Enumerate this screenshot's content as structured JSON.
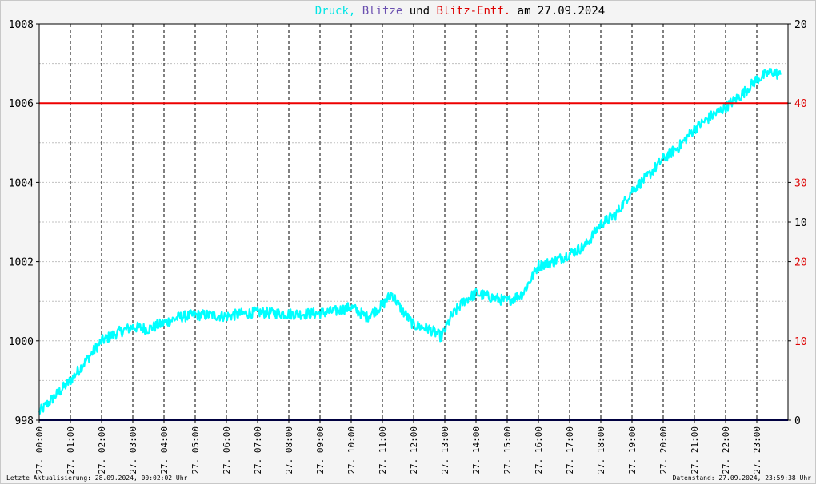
{
  "chart_data": {
    "type": "line",
    "title_parts": [
      {
        "text": "Druck,",
        "color": "#00e5e5"
      },
      {
        "text": "Blitze",
        "color": "#6a4fb0"
      },
      {
        "text": "und",
        "color": "#000000"
      },
      {
        "text": "Blitz-Entf.",
        "color": "#dd0000"
      },
      {
        "text": "am 27.09.2024",
        "color": "#000000"
      }
    ],
    "y_left": {
      "min": 998,
      "max": 1008,
      "ticks": [
        998,
        1000,
        1002,
        1004,
        1006,
        1008
      ]
    },
    "y_right_ticks": [
      {
        "label": "0",
        "color": "#000000",
        "pressure": 998
      },
      {
        "label": "10",
        "color": "#dd0000",
        "pressure": 1000
      },
      {
        "label": "20",
        "color": "#dd0000",
        "pressure": 1002
      },
      {
        "label": "10",
        "color": "#000000",
        "pressure": 1003
      },
      {
        "label": "30",
        "color": "#dd0000",
        "pressure": 1004
      },
      {
        "label": "40",
        "color": "#dd0000",
        "pressure": 1006
      },
      {
        "label": "20",
        "color": "#000000",
        "pressure": 1008
      }
    ],
    "x_labels": [
      "27. 00:00",
      "27. 01:00",
      "27. 02:00",
      "27. 03:00",
      "27. 04:00",
      "27. 05:00",
      "27. 06:00",
      "27. 07:00",
      "27. 08:00",
      "27. 09:00",
      "27. 10:00",
      "27. 11:00",
      "27. 12:00",
      "27. 13:00",
      "27. 14:00",
      "27. 15:00",
      "27. 16:00",
      "27. 17:00",
      "27. 18:00",
      "27. 19:00",
      "27. 20:00",
      "27. 21:00",
      "27. 22:00",
      "27. 23:00"
    ],
    "x_hours_range": [
      0,
      24
    ],
    "series": [
      {
        "color": "#00ffff",
        "x_hours": [
          0,
          0.5,
          1,
          1.5,
          2,
          2.5,
          3,
          3.5,
          4,
          4.5,
          5,
          5.5,
          6,
          6.5,
          7,
          7.5,
          8,
          8.5,
          9,
          9.5,
          10,
          10.5,
          11,
          11.3,
          11.6,
          12,
          12.5,
          12.9,
          13.2,
          13.6,
          14,
          14.5,
          15,
          15.5,
          16,
          16.5,
          17,
          17.5,
          18,
          18.5,
          19,
          19.5,
          20,
          20.5,
          21,
          21.5,
          22,
          22.5,
          23,
          23.5,
          23.75
        ],
        "values": [
          998.2,
          998.6,
          999.0,
          999.5,
          1000.0,
          1000.2,
          1000.35,
          1000.3,
          1000.45,
          1000.6,
          1000.65,
          1000.65,
          1000.62,
          1000.68,
          1000.72,
          1000.7,
          1000.68,
          1000.68,
          1000.7,
          1000.75,
          1000.85,
          1000.6,
          1000.9,
          1001.2,
          1000.8,
          1000.4,
          1000.3,
          1000.1,
          1000.6,
          1001.0,
          1001.2,
          1001.1,
          1001.0,
          1001.2,
          1001.9,
          1002.0,
          1002.2,
          1002.4,
          1002.95,
          1003.2,
          1003.8,
          1004.15,
          1004.6,
          1004.9,
          1005.35,
          1005.65,
          1005.9,
          1006.2,
          1006.6,
          1006.8,
          1006.7
        ]
      }
    ],
    "hlines": [
      {
        "pressure": 1006,
        "color": "#ee0000"
      },
      {
        "pressure": 998,
        "color": "#000080"
      }
    ]
  },
  "footer": {
    "left": "Letzte Aktualisierung: 28.09.2024, 00:02:02 Uhr",
    "right": "Datenstand: 27.09.2024, 23:59:38 Uhr"
  }
}
